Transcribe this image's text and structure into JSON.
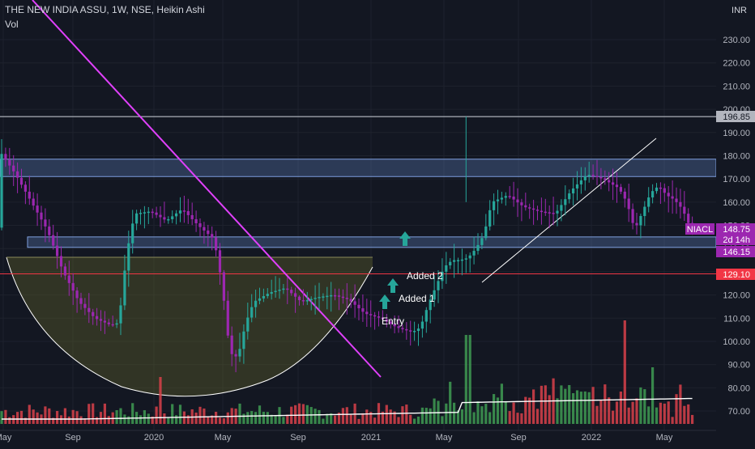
{
  "header": {
    "symbol_name": "THE NEW INDIA ASSU",
    "interval": "1W",
    "exchange": "NSE",
    "chart_style": "Heikin Ashi",
    "volume_label": "Vol",
    "currency": "INR"
  },
  "chart_data": {
    "type": "candlestick",
    "style": "heikin-ashi",
    "y_axis_labels": [
      "230.00",
      "220.00",
      "210.00",
      "200.00",
      "190.00",
      "180.00",
      "170.00",
      "160.00",
      "150.00",
      "140.00",
      "130.00",
      "120.00",
      "110.00",
      "100.00",
      "90.00",
      "80.00",
      "70.00"
    ],
    "ylim": [
      66,
      240
    ],
    "x_axis_labels": [
      "May",
      "Sep",
      "2020",
      "May",
      "Sep",
      "2021",
      "May",
      "Sep",
      "2022",
      "May"
    ],
    "grid": true,
    "price_tags": [
      {
        "label": "196.85",
        "value": 196.85,
        "color": "#b2b5be",
        "text_color": "#131722"
      },
      {
        "label": "NIACL",
        "value": 148.75,
        "color": "#9c27b0",
        "text_color": "#ffffff"
      },
      {
        "label": "148.75",
        "value": 148.75,
        "color": "#9c27b0",
        "text_color": "#ffffff"
      },
      {
        "label": "2d 14h",
        "value": 145.6,
        "color": "#9c27b0",
        "text_color": "#ffffff"
      },
      {
        "label": "146.15",
        "value": 141.9,
        "color": "#9c27b0",
        "text_color": "#ffffff"
      },
      {
        "label": "129.10",
        "value": 129.1,
        "color": "#f23645",
        "text_color": "#ffffff"
      }
    ],
    "horizontal_lines": [
      {
        "value": 196.85,
        "color": "#d1d4dc"
      },
      {
        "value": 129.1,
        "color": "#f23645"
      }
    ],
    "zones": [
      {
        "from": 171,
        "to": 178.5,
        "color": "#5b7ab8"
      },
      {
        "from": 140.5,
        "to": 145,
        "color": "#5b7ab8"
      }
    ],
    "annotations": [
      {
        "text": "Added 2",
        "week": 124,
        "value": 128
      },
      {
        "text": "Added 1",
        "week": 122,
        "value": 118
      },
      {
        "text": "Entry",
        "week": 118,
        "value": 108
      },
      {
        "arrow": true,
        "week": 116,
        "value": 115
      },
      {
        "arrow": true,
        "week": 118,
        "value": 125
      },
      {
        "arrow": true,
        "week": 120,
        "value": 143
      }
    ],
    "candles": {
      "start_week": 0,
      "path": [
        [
          0,
          182
        ],
        [
          4,
          172
        ],
        [
          8,
          160
        ],
        [
          12,
          148
        ],
        [
          16,
          130
        ],
        [
          20,
          117
        ],
        [
          24,
          110
        ],
        [
          28,
          107
        ],
        [
          30,
          108
        ],
        [
          32,
          138
        ],
        [
          34,
          155
        ],
        [
          38,
          156
        ],
        [
          42,
          152
        ],
        [
          46,
          157
        ],
        [
          50,
          150
        ],
        [
          54,
          144
        ],
        [
          56,
          125
        ],
        [
          58,
          95
        ],
        [
          60,
          93
        ],
        [
          62,
          108
        ],
        [
          64,
          117
        ],
        [
          68,
          121
        ],
        [
          72,
          123
        ],
        [
          76,
          117
        ],
        [
          80,
          119
        ],
        [
          84,
          120
        ],
        [
          88,
          118
        ],
        [
          92,
          112
        ],
        [
          96,
          110
        ],
        [
          100,
          106
        ],
        [
          104,
          104
        ],
        [
          106,
          106
        ],
        [
          108,
          116
        ],
        [
          110,
          124
        ],
        [
          112,
          132
        ],
        [
          114,
          135
        ],
        [
          116,
          135
        ],
        [
          118,
          136
        ],
        [
          120,
          140
        ],
        [
          122,
          146
        ],
        [
          124,
          160
        ],
        [
          128,
          163
        ],
        [
          132,
          158
        ],
        [
          136,
          156
        ],
        [
          140,
          155
        ],
        [
          144,
          165
        ],
        [
          148,
          172
        ],
        [
          152,
          170
        ],
        [
          156,
          166
        ],
        [
          158,
          160
        ],
        [
          160,
          148
        ],
        [
          162,
          156
        ],
        [
          164,
          164
        ],
        [
          166,
          167
        ],
        [
          168,
          163
        ],
        [
          170,
          161
        ],
        [
          172,
          157
        ],
        [
          174,
          149
        ]
      ]
    },
    "volume": {
      "bars_note": "weekly volume bars, green up / red down",
      "ma_color": "#ffffff"
    }
  }
}
